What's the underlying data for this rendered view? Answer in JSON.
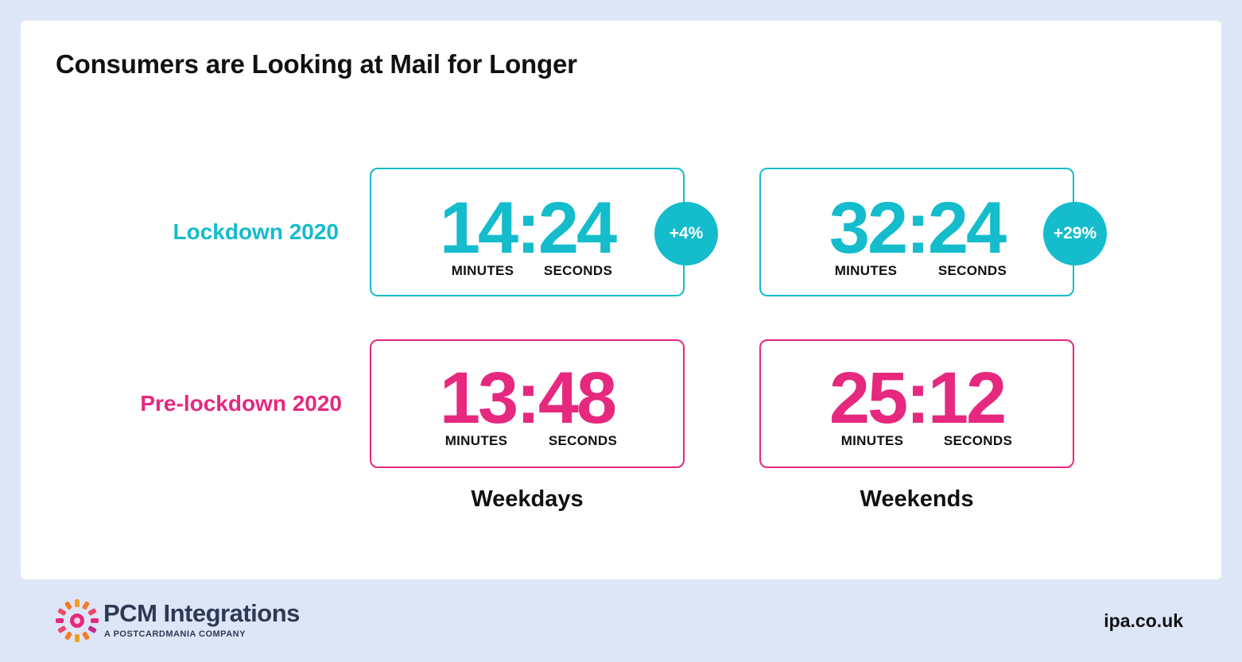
{
  "title": "Consumers are Looking at Mail for Longer",
  "rows": {
    "lockdown": "Lockdown 2020",
    "prelockdown": "Pre-lockdown 2020"
  },
  "columns": {
    "weekdays": "Weekdays",
    "weekends": "Weekends"
  },
  "cells": {
    "lockdown_weekdays": {
      "time": "14:24",
      "minutes": "MINUTES",
      "seconds": "SECONDS",
      "change": "+4%"
    },
    "lockdown_weekends": {
      "time": "32:24",
      "minutes": "MINUTES",
      "seconds": "SECONDS",
      "change": "+29%"
    },
    "pre_weekdays": {
      "time": "13:48",
      "minutes": "MINUTES",
      "seconds": "SECONDS"
    },
    "pre_weekends": {
      "time": "25:12",
      "minutes": "MINUTES",
      "seconds": "SECONDS"
    }
  },
  "footer": {
    "brand": "PCM Integrations",
    "brand_sub": "A POSTCARDMANIA COMPANY",
    "site": "ipa.co.uk"
  },
  "colors": {
    "lockdown": "#14bccc",
    "prelockdown": "#e6287f",
    "background": "#dde6f7"
  }
}
